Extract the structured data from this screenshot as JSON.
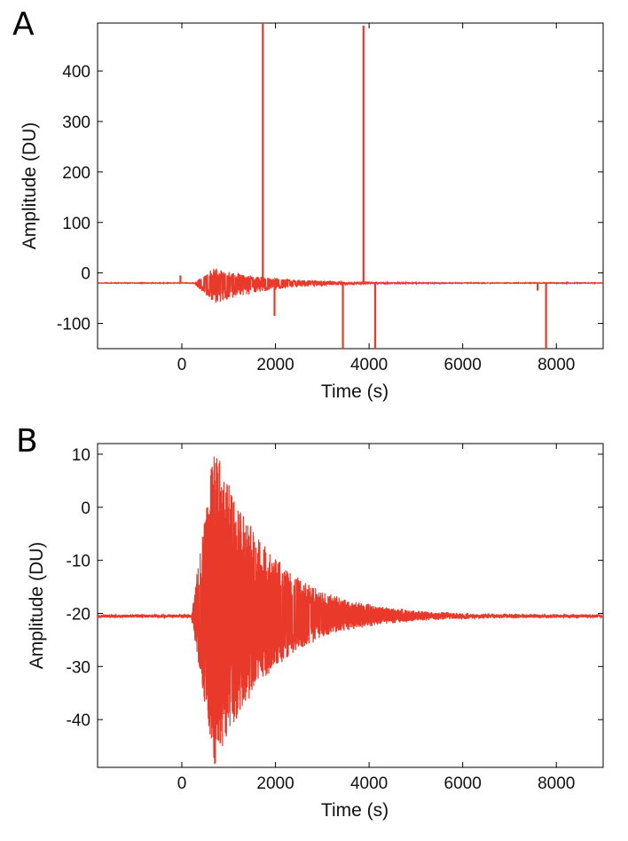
{
  "panels": [
    {
      "letter": "A"
    },
    {
      "letter": "B"
    }
  ],
  "colors": {
    "series": "#e8392a",
    "axis": "#000000",
    "background": "#ffffff"
  },
  "chart_data": [
    {
      "type": "line",
      "xlabel": "Time (s)",
      "ylabel": "Amplitude (DU)",
      "xlim": [
        -1800,
        9000
      ],
      "ylim": [
        -150,
        495
      ],
      "xticks": [
        0,
        2000,
        4000,
        6000,
        8000
      ],
      "yticks": [
        -100,
        0,
        100,
        200,
        300,
        400
      ],
      "grid": false,
      "baseline": -20,
      "signal": {
        "onset": 250,
        "peak_time": 700,
        "upper_envelope_max": 10,
        "lower_envelope_min": -62,
        "decay_end": 4200
      },
      "events": [
        {
          "x": -30,
          "y": -5
        },
        {
          "x": 1730,
          "y": 495
        },
        {
          "x": 1980,
          "y": -85
        },
        {
          "x": 3440,
          "y": -150
        },
        {
          "x": 3880,
          "y": 490
        },
        {
          "x": 4130,
          "y": -150
        },
        {
          "x": 7600,
          "y": -35
        },
        {
          "x": 7780,
          "y": -150
        }
      ]
    },
    {
      "type": "line",
      "xlabel": "Time (s)",
      "ylabel": "Amplitude (DU)",
      "xlim": [
        -1800,
        9000
      ],
      "ylim": [
        -49,
        12
      ],
      "xticks": [
        0,
        2000,
        4000,
        6000,
        8000
      ],
      "yticks": [
        -40,
        -30,
        -20,
        -10,
        0,
        10
      ],
      "grid": false,
      "baseline": -20.5,
      "signal": {
        "onset": 200,
        "peak_time": 700,
        "upper_envelope_max": 12,
        "lower_envelope_min": -49,
        "decay_end": 4500
      }
    }
  ]
}
